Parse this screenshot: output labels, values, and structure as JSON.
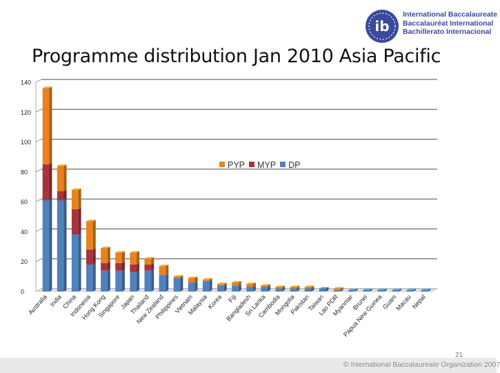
{
  "header": {
    "org_lines": [
      "International Baccalaureate",
      "Baccalauréat International",
      "Bachillerato Internacional"
    ],
    "logo_letters": "ib"
  },
  "slide": {
    "title": "Programme distribution  Jan 2010 Asia Pacific",
    "page_number": "21",
    "copyright": "© International Baccalaureate Organization 2007"
  },
  "colors": {
    "pyp": "#e8821e",
    "myp": "#a8333a",
    "dp": "#4f81bd",
    "grid": "#4a4a4a",
    "logo": "#3b4a9c"
  },
  "chart_data": {
    "type": "bar",
    "stacked": true,
    "orientation": "vertical",
    "style": "3d",
    "grid": true,
    "legend": "top-center",
    "ylim": [
      0,
      140
    ],
    "yticks": [
      "0",
      "20",
      "40",
      "60",
      "80",
      "100",
      "120",
      "140"
    ],
    "categories": [
      "Australia",
      "India",
      "China",
      "Indonesia",
      "Hong Kong",
      "Singapore",
      "Japan",
      "Thailand",
      "New Zealand",
      "Philippines",
      "Vietnam",
      "Malaysia",
      "Korea",
      "Fiji",
      "Bangladesh",
      "Sri Lanka",
      "Cambodia",
      "Mongolia",
      "Pakistan",
      "Taiwan",
      "Lao PDR",
      "Myanmar",
      "Brunei",
      "Papua New Guinea",
      "Guam",
      "Macau",
      "Nepal"
    ],
    "series": [
      {
        "name": "DP",
        "values": [
          61,
          61,
          38,
          18,
          14,
          14,
          13,
          14,
          11,
          9,
          6,
          7,
          4,
          4,
          3,
          3,
          2,
          2,
          2,
          2,
          1,
          1,
          1,
          1,
          1,
          1,
          1
        ]
      },
      {
        "name": "MYP",
        "values": [
          24,
          6,
          17,
          10,
          5,
          5,
          5,
          4,
          0,
          0,
          0,
          0,
          0,
          0,
          0,
          0,
          0,
          0,
          0,
          0,
          0,
          0,
          0,
          0,
          0,
          0,
          0
        ]
      },
      {
        "name": "PYP",
        "values": [
          51,
          17,
          13,
          19,
          10,
          7,
          8,
          4,
          6,
          1,
          3,
          1,
          1,
          2,
          2,
          1,
          1,
          1,
          1,
          0,
          1,
          0,
          0,
          0,
          0,
          0,
          0
        ]
      }
    ]
  }
}
